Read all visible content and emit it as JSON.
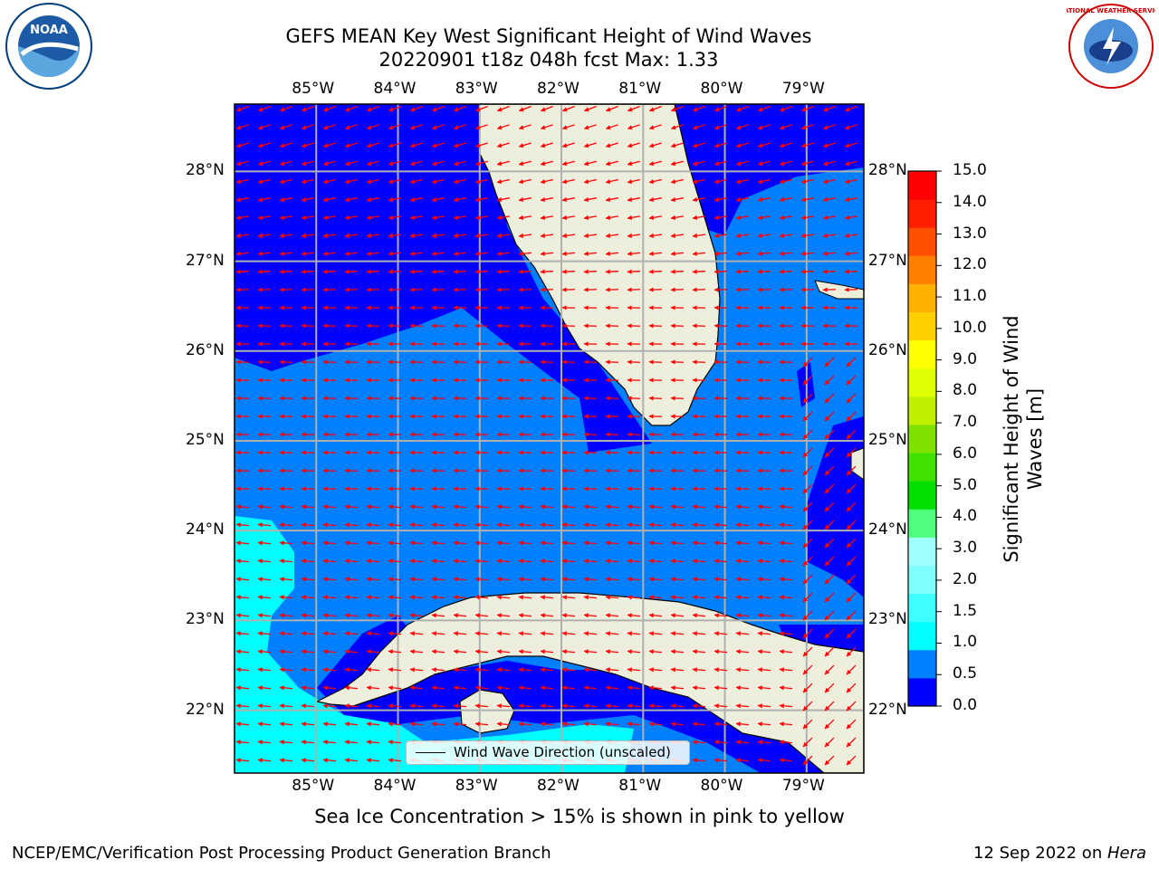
{
  "title": {
    "line1": "GEFS MEAN Key West Significant Height of Wind Waves",
    "line2": "20220901 t18z 048h fcst   Max: 1.33"
  },
  "map": {
    "lon_ticks": [
      "85°W",
      "84°W",
      "83°W",
      "82°W",
      "81°W",
      "80°W",
      "79°W"
    ],
    "lat_ticks": [
      "28°N",
      "27°N",
      "26°N",
      "25°N",
      "24°N",
      "23°N",
      "22°N"
    ],
    "lon_range": [
      -86,
      -78.3
    ],
    "lat_range": [
      21.3,
      28.75
    ],
    "arrow_color": "#ff0000",
    "land_color": "#eeeedd",
    "legend_label": "Wind Wave Direction (unscaled)"
  },
  "colorbar": {
    "title": "Significant Height of Wind Waves [m]",
    "labels": [
      "15.0",
      "14.0",
      "13.0",
      "12.0",
      "11.0",
      "10.0",
      "9.0",
      "8.0",
      "7.0",
      "6.0",
      "5.0",
      "4.0",
      "3.0",
      "2.0",
      "1.5",
      "1.0",
      "0.5",
      "0.0"
    ],
    "colors": [
      "#0000ff",
      "#0080ff",
      "#00ffff",
      "#40ffff",
      "#80ffff",
      "#a0ffff",
      "#50ff80",
      "#00e000",
      "#40e000",
      "#80e000",
      "#c0f000",
      "#e0ff00",
      "#ffff00",
      "#ffd000",
      "#ffb000",
      "#ff8000",
      "#ff5000",
      "#ff2000",
      "#ff0000"
    ]
  },
  "subtitle": "Sea Ice Concentration > 15% is shown in pink to yellow",
  "footer": {
    "left": "NCEP/EMC/Verification Post Processing Product Generation Branch",
    "right_date": "12 Sep 2022 on ",
    "right_machine": "Hera"
  },
  "logos": {
    "noaa": "NOAA",
    "nws": "NATIONAL WEATHER SERVICE"
  }
}
